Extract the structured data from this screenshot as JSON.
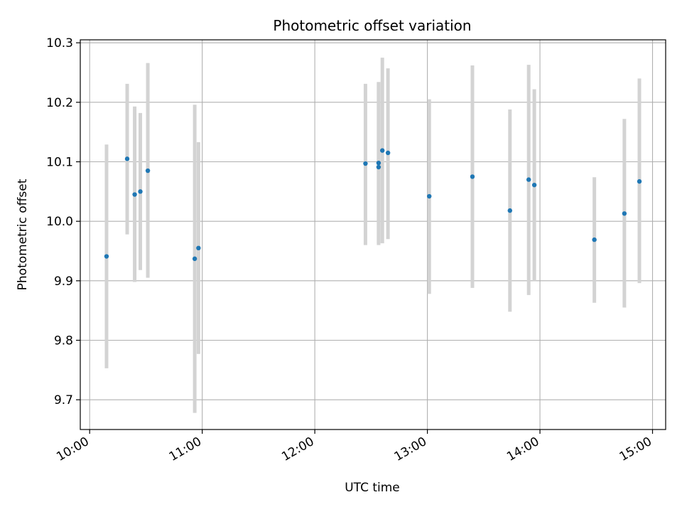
{
  "chart_data": {
    "type": "scatter",
    "title": "Photometric offset variation",
    "xlabel": "UTC time",
    "ylabel": "Photometric offset",
    "xlim": [
      "09:55",
      "15:07"
    ],
    "ylim": [
      9.65,
      10.305
    ],
    "x_ticks": [
      "10:00",
      "11:00",
      "12:00",
      "13:00",
      "14:00",
      "15:00"
    ],
    "y_ticks": [
      9.7,
      9.8,
      9.9,
      10.0,
      10.1,
      10.2,
      10.3
    ],
    "grid": true,
    "series": [
      {
        "marker_color": "#1f77b4",
        "errorbar_color": "#d3d3d3",
        "points": [
          {
            "x": "10:09",
            "y": 9.941,
            "ylow": 9.753,
            "yhigh": 10.129
          },
          {
            "x": "10:20",
            "y": 10.105,
            "ylow": 9.978,
            "yhigh": 10.231
          },
          {
            "x": "10:24",
            "y": 10.045,
            "ylow": 9.898,
            "yhigh": 10.193
          },
          {
            "x": "10:27",
            "y": 10.05,
            "ylow": 9.918,
            "yhigh": 10.182
          },
          {
            "x": "10:31",
            "y": 10.085,
            "ylow": 9.905,
            "yhigh": 10.266
          },
          {
            "x": "10:56",
            "y": 9.937,
            "ylow": 9.678,
            "yhigh": 10.196
          },
          {
            "x": "10:58",
            "y": 9.955,
            "ylow": 9.777,
            "yhigh": 10.133
          },
          {
            "x": "12:27",
            "y": 10.097,
            "ylow": 9.96,
            "yhigh": 10.231
          },
          {
            "x": "12:34",
            "y": 10.091,
            "ylow": 9.96,
            "yhigh": 10.234
          },
          {
            "x": "12:34",
            "y": 10.098,
            "ylow": 9.963,
            "yhigh": 10.234
          },
          {
            "x": "12:36",
            "y": 10.119,
            "ylow": 9.963,
            "yhigh": 10.275
          },
          {
            "x": "12:39",
            "y": 10.115,
            "ylow": 9.97,
            "yhigh": 10.257
          },
          {
            "x": "13:01",
            "y": 10.042,
            "ylow": 9.878,
            "yhigh": 10.205
          },
          {
            "x": "13:24",
            "y": 10.075,
            "ylow": 9.888,
            "yhigh": 10.262
          },
          {
            "x": "13:44",
            "y": 10.018,
            "ylow": 9.848,
            "yhigh": 10.188
          },
          {
            "x": "13:54",
            "y": 10.07,
            "ylow": 9.876,
            "yhigh": 10.263
          },
          {
            "x": "13:57",
            "y": 10.061,
            "ylow": 9.9,
            "yhigh": 10.222
          },
          {
            "x": "14:29",
            "y": 9.969,
            "ylow": 9.863,
            "yhigh": 10.074
          },
          {
            "x": "14:45",
            "y": 10.013,
            "ylow": 9.855,
            "yhigh": 10.172
          },
          {
            "x": "14:53",
            "y": 10.067,
            "ylow": 9.896,
            "yhigh": 10.24
          }
        ]
      }
    ]
  }
}
